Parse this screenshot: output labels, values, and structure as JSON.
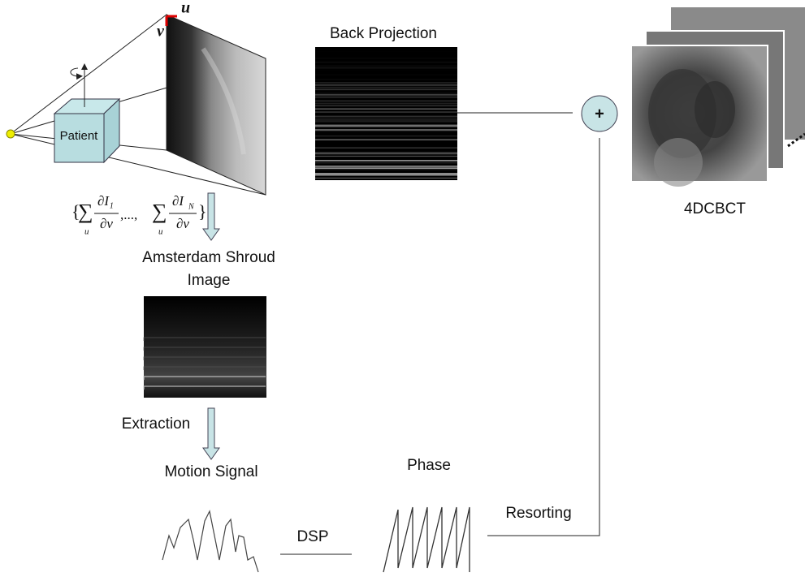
{
  "projection": {
    "patient": "Patient",
    "u_axis": "u",
    "v_axis": "v"
  },
  "formula": {
    "open": "{",
    "sum": "∑",
    "sub": "u",
    "num1": "∂I₁",
    "den": "∂v",
    "sep": ",...,",
    "num2": "∂I",
    "num2_sub": "N",
    "close": "}"
  },
  "back_projection": "Back Projection",
  "plus": "+",
  "output": "4DCBCT",
  "shroud": {
    "line1": "Amsterdam Shroud",
    "line2": "Image"
  },
  "extraction": "Extraction",
  "motion_signal": "Motion Signal",
  "phase": "Phase",
  "dsp": "DSP",
  "resorting": "Resorting"
}
